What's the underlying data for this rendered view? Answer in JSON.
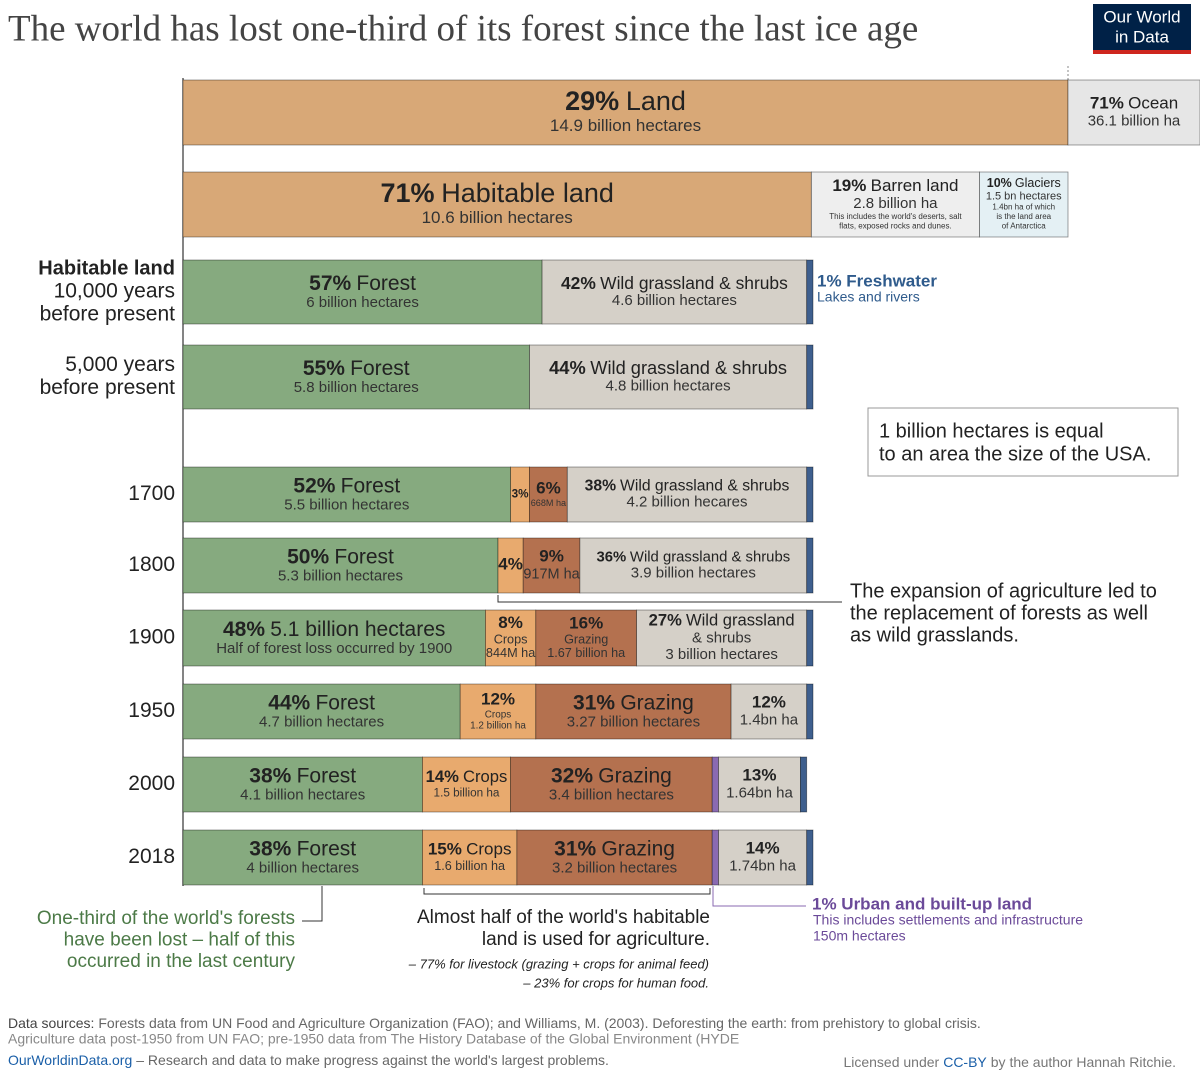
{
  "title": "The world has lost one-third of its forest since the last ice age",
  "logo": [
    "Our World",
    "in Data"
  ],
  "colors": {
    "land": "#d8a877",
    "ocean": "#e6e6e6",
    "barren": "#eeeeee",
    "glaciers": "#e4f0f4",
    "forest": "#86aa7f",
    "grass": "#d5d0c8",
    "crops": "#e8aa6e",
    "grazing": "#b4714f",
    "fresh": "#3e5f8e",
    "urban": "#8a6ab2"
  },
  "land_row": [
    {
      "value": 29,
      "value_label": "29%",
      "name": "Land",
      "details": [
        "14.9 billion hectares"
      ],
      "kind": "land"
    },
    {
      "value": 71,
      "value_label": "71%",
      "name": "Ocean",
      "details": [
        "36.1 billion ha"
      ],
      "kind": "ocean"
    }
  ],
  "habitable_row": [
    {
      "value": 71,
      "value_label": "71%",
      "name": "Habitable land",
      "details": [
        "10.6 billion hectares"
      ],
      "kind": "land"
    },
    {
      "value": 19,
      "value_label": "19%",
      "name": "Barren land",
      "details": [
        "2.8 billion ha"
      ],
      "note": [
        "This includes the world's deserts, salt",
        "flats,  exposed rocks and dunes."
      ],
      "kind": "barren"
    },
    {
      "value": 10,
      "value_label": "10%",
      "name": "Glaciers",
      "details": [
        "1.5 bn hectares"
      ],
      "note": [
        "1.4bn ha of which",
        "is the land area",
        "of Antarctica"
      ],
      "kind": "glaciers"
    }
  ],
  "rows": [
    {
      "heading": "Habitable land",
      "label": [
        "10,000 years",
        "before present"
      ],
      "segments": [
        {
          "value": 57,
          "value_label": "57%",
          "name": "Forest",
          "details": [
            "6 billion hectares"
          ],
          "kind": "forest"
        },
        {
          "value": 42,
          "value_label": "42%",
          "name": "Wild grassland & shrubs",
          "details": [
            "4.6 billion hectares"
          ],
          "kind": "grass"
        },
        {
          "value": 1,
          "kind": "fresh"
        }
      ]
    },
    {
      "label": [
        "5,000 years",
        "before present"
      ],
      "segments": [
        {
          "value": 55,
          "value_label": "55%",
          "name": "Forest",
          "details": [
            "5.8 billion hectares"
          ],
          "kind": "forest"
        },
        {
          "value": 44,
          "value_label": "44%",
          "name": "Wild grassland & shrubs",
          "details": [
            "4.8 billion hectares"
          ],
          "kind": "grass"
        },
        {
          "value": 1,
          "kind": "fresh"
        }
      ]
    },
    {
      "label": [
        "1700"
      ],
      "segments": [
        {
          "value": 52,
          "value_label": "52%",
          "name": "Forest",
          "details": [
            "5.5 billion hectares"
          ],
          "kind": "forest"
        },
        {
          "value": 3,
          "value_label": "3%",
          "kind": "crops"
        },
        {
          "value": 6,
          "value_label": "6%",
          "details": [
            "668M ha"
          ],
          "kind": "grazing"
        },
        {
          "value": 38,
          "value_label": "38%",
          "name": "Wild grassland & shrubs",
          "details": [
            "4.2 billion hecares"
          ],
          "kind": "grass"
        },
        {
          "value": 1,
          "kind": "fresh"
        }
      ]
    },
    {
      "label": [
        "1800"
      ],
      "segments": [
        {
          "value": 50,
          "value_label": "50%",
          "name": "Forest",
          "details": [
            "5.3 billion hectares"
          ],
          "kind": "forest"
        },
        {
          "value": 4,
          "value_label": "4%",
          "kind": "crops"
        },
        {
          "value": 9,
          "value_label": "9%",
          "details": [
            "917M ha"
          ],
          "kind": "grazing"
        },
        {
          "value": 36,
          "value_label": "36%",
          "name": "Wild grassland & shrubs",
          "details": [
            "3.9 billion hectares"
          ],
          "kind": "grass"
        },
        {
          "value": 1,
          "kind": "fresh"
        }
      ]
    },
    {
      "label": [
        "1900"
      ],
      "segments": [
        {
          "value": 48,
          "value_label": "48%",
          "name": "5.1 billion hectares",
          "details": [
            "Half of forest loss occurred by 1900"
          ],
          "kind": "forest"
        },
        {
          "value": 8,
          "value_label": "8%",
          "details": [
            "Crops",
            "844M ha"
          ],
          "kind": "crops"
        },
        {
          "value": 16,
          "value_label": "16%",
          "details": [
            "Grazing",
            "1.67 billion ha"
          ],
          "kind": "grazing"
        },
        {
          "value": 27,
          "value_label": "27%",
          "name": "Wild grassland",
          "details": [
            "& shrubs",
            "3 billion hectares"
          ],
          "kind": "grass"
        },
        {
          "value": 1,
          "kind": "fresh"
        }
      ]
    },
    {
      "label": [
        "1950"
      ],
      "segments": [
        {
          "value": 44,
          "value_label": "44%",
          "name": "Forest",
          "details": [
            "4.7 billion hectares"
          ],
          "kind": "forest"
        },
        {
          "value": 12,
          "value_label": "12%",
          "details": [
            "Crops",
            "1.2 billion ha"
          ],
          "kind": "crops"
        },
        {
          "value": 31,
          "value_label": "31%",
          "name": "Grazing",
          "details": [
            "3.27 billion hectares"
          ],
          "kind": "grazing"
        },
        {
          "value": 12,
          "value_label": "12%",
          "details": [
            "1.4bn ha"
          ],
          "kind": "grass"
        },
        {
          "value": 1,
          "kind": "fresh"
        }
      ]
    },
    {
      "label": [
        "2000"
      ],
      "segments": [
        {
          "value": 38,
          "value_label": "38%",
          "name": "Forest",
          "details": [
            "4.1 billion hectares"
          ],
          "kind": "forest"
        },
        {
          "value": 14,
          "value_label": "14%",
          "name": "Crops",
          "details": [
            "1.5 billion ha"
          ],
          "kind": "crops"
        },
        {
          "value": 32,
          "value_label": "32%",
          "name": "Grazing",
          "details": [
            "3.4 billion hectares"
          ],
          "kind": "grazing"
        },
        {
          "value": 1,
          "kind": "urban"
        },
        {
          "value": 13,
          "value_label": "13%",
          "details": [
            "1.64bn ha"
          ],
          "kind": "grass"
        },
        {
          "value": 1,
          "kind": "fresh"
        }
      ]
    },
    {
      "label": [
        "2018"
      ],
      "segments": [
        {
          "value": 38,
          "value_label": "38%",
          "name": "Forest",
          "details": [
            "4 billion hectares"
          ],
          "kind": "forest"
        },
        {
          "value": 15,
          "value_label": "15%",
          "name": "Crops",
          "details": [
            "1.6 billion ha"
          ],
          "kind": "crops"
        },
        {
          "value": 31,
          "value_label": "31%",
          "name": "Grazing",
          "details": [
            "3.2 billion hectares"
          ],
          "kind": "grazing"
        },
        {
          "value": 1,
          "kind": "urban"
        },
        {
          "value": 14,
          "value_label": "14%",
          "details": [
            "1.74bn ha"
          ],
          "kind": "grass"
        },
        {
          "value": 1,
          "kind": "fresh"
        }
      ]
    }
  ],
  "annotations": {
    "freshwater": {
      "title": "1% Freshwater",
      "text": "Lakes and rivers"
    },
    "usa_box": [
      "1 billion hectares is equal",
      "to an area the size of the USA."
    ],
    "expansion": [
      "The expansion of agriculture led to",
      "the replacement of forests as well",
      "as wild grasslands."
    ],
    "forest_loss": [
      "One-third of the world's forests",
      "have been lost – half of this",
      "occurred in the last century"
    ],
    "agriculture": {
      "lines": [
        "Almost half of the world's habitable",
        "land is used for agriculture."
      ],
      "italic": [
        "– 77% for livestock (grazing + crops for animal feed)",
        "– 23% for crops for human food."
      ]
    },
    "urban": {
      "title": "1% Urban and built-up land",
      "lines": [
        "This includes settlements and infrastructure",
        "150m hectares"
      ]
    }
  },
  "sources": {
    "label": "Data sources:",
    "lines": [
      "Forests data from UN  Food and Agriculture Organization (FAO); and Williams, M. (2003). Deforesting the earth: from prehistory to global crisis.",
      "Agriculture data post-1950 from UN FAO; pre-1950 data from The History Database of the Global Environment (HYDE"
    ]
  },
  "footer": {
    "site": "OurWorldinData.org",
    "tagline": "– Research and data to make progress against the world's largest problems.",
    "license_pre": "Licensed under",
    "license_link": "CC-BY",
    "license_post": "by the author Hannah Ritchie."
  }
}
